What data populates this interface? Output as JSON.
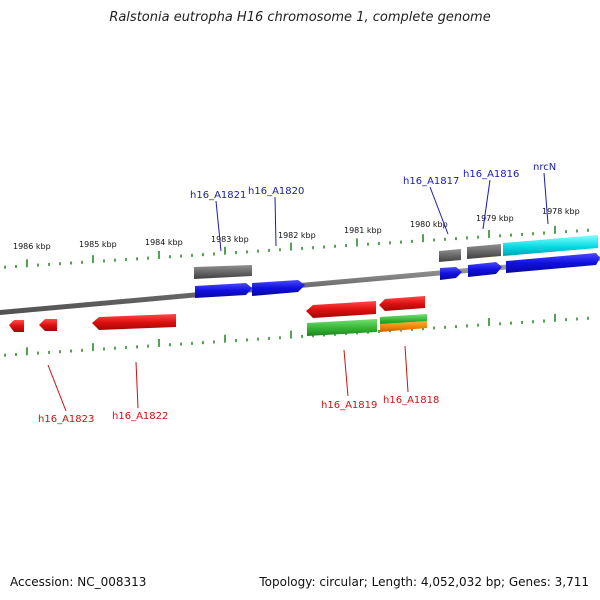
{
  "title": "Ralstonia eutropha H16 chromosome 1, complete genome",
  "footer": {
    "accession": "Accession: NC_008313",
    "summary": "Topology: circular; Length: 4,052,032 bp; Genes: 3,711"
  },
  "scale_labels": [
    "1986 kbp",
    "1985 kbp",
    "1984 kbp",
    "1983 kbp",
    "1982 kbp",
    "1981 kbp",
    "1980 kbp",
    "1979 kbp",
    "1978 kbp"
  ],
  "gene_labels_top": [
    "h16_A1821",
    "h16_A1820",
    "h16_A1817",
    "h16_A1816",
    "nrcN"
  ],
  "gene_labels_bottom": [
    "h16_A1823",
    "h16_A1822",
    "h16_A1819",
    "h16_A1818"
  ],
  "colors": {
    "forward_cds": "#1010e0",
    "reverse_cds": "#e01010",
    "gray_feature": "#6a6a6a",
    "green_feature": "#30b030",
    "orange_feature": "#f08000",
    "cyan_feature": "#00d8e0",
    "ticks": "#2a8a2a",
    "backbone": "#808080",
    "label_top": "#1a1ab4",
    "label_bottom": "#d01010"
  }
}
